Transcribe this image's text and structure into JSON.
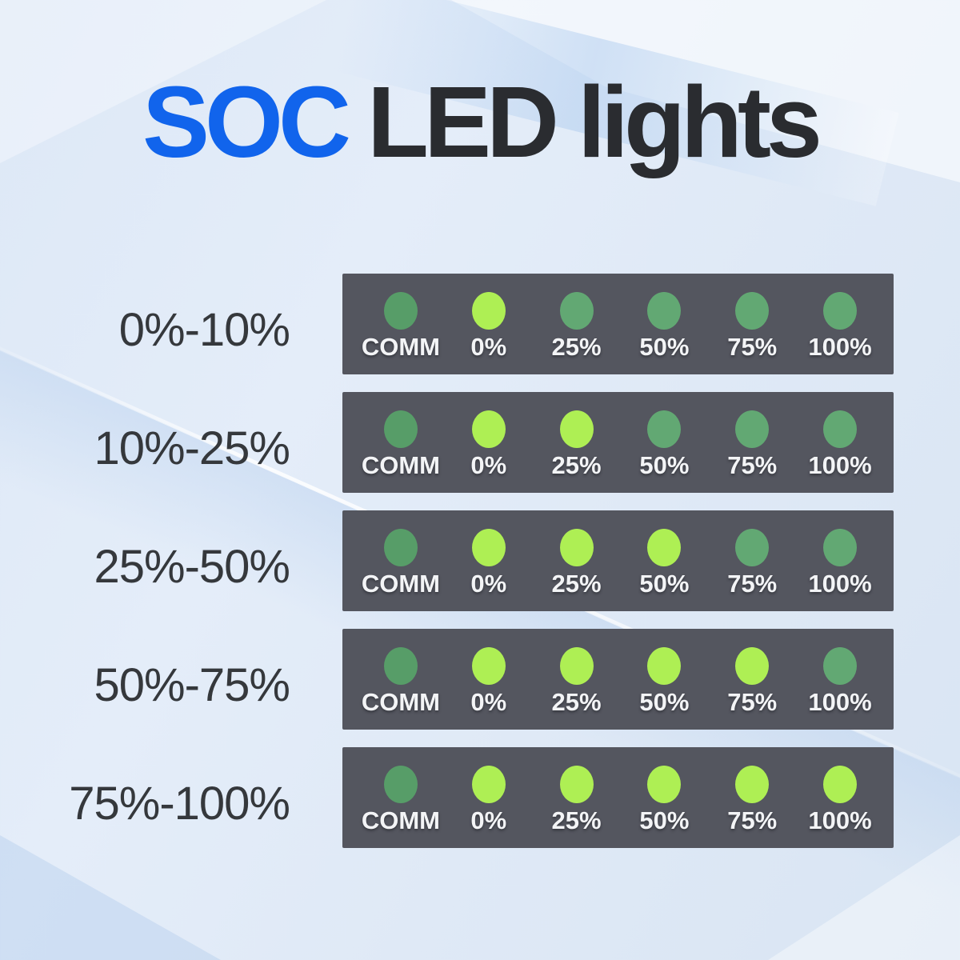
{
  "title": {
    "soc": "SOC",
    "rest": "LED lights"
  },
  "colors": {
    "accent_blue": "#1164ec",
    "title_dark": "#2a2c30",
    "row_label": "#35383c",
    "panel_bg": "#54565f",
    "led_on": "#aeef54",
    "led_off": "#62a873",
    "led_comm": "#579d68",
    "panel_label": "#f3f4f6"
  },
  "panel": {
    "labels": [
      "COMM",
      "0%",
      "25%",
      "50%",
      "75%",
      "100%"
    ]
  },
  "rows": [
    {
      "label": "0%-10%",
      "led_states": [
        "dim",
        "on",
        "off",
        "off",
        "off",
        "off"
      ]
    },
    {
      "label": "10%-25%",
      "led_states": [
        "dim",
        "on",
        "on",
        "off",
        "off",
        "off"
      ]
    },
    {
      "label": "25%-50%",
      "led_states": [
        "dim",
        "on",
        "on",
        "on",
        "off",
        "off"
      ]
    },
    {
      "label": "50%-75%",
      "led_states": [
        "dim",
        "on",
        "on",
        "on",
        "on",
        "off"
      ]
    },
    {
      "label": "75%-100%",
      "led_states": [
        "dim",
        "on",
        "on",
        "on",
        "on",
        "on"
      ]
    }
  ]
}
